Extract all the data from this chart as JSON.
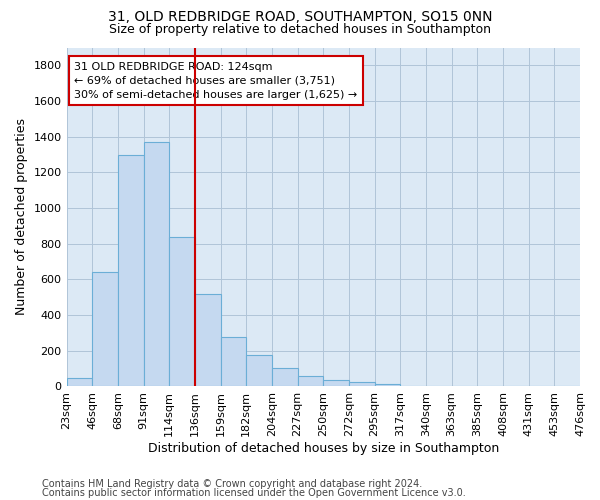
{
  "title_line1": "31, OLD REDBRIDGE ROAD, SOUTHAMPTON, SO15 0NN",
  "title_line2": "Size of property relative to detached houses in Southampton",
  "xlabel": "Distribution of detached houses by size in Southampton",
  "ylabel": "Number of detached properties",
  "footnote1": "Contains HM Land Registry data © Crown copyright and database right 2024.",
  "footnote2": "Contains public sector information licensed under the Open Government Licence v3.0.",
  "annotation_line1": "31 OLD REDBRIDGE ROAD: 124sqm",
  "annotation_line2": "← 69% of detached houses are smaller (3,751)",
  "annotation_line3": "30% of semi-detached houses are larger (1,625) →",
  "bar_values": [
    50,
    640,
    1300,
    1370,
    840,
    520,
    275,
    175,
    105,
    60,
    35,
    25,
    13,
    5,
    0,
    0,
    0,
    0,
    0,
    0
  ],
  "bin_labels": [
    "23sqm",
    "46sqm",
    "68sqm",
    "91sqm",
    "114sqm",
    "136sqm",
    "159sqm",
    "182sqm",
    "204sqm",
    "227sqm",
    "250sqm",
    "272sqm",
    "295sqm",
    "317sqm",
    "340sqm",
    "363sqm",
    "385sqm",
    "408sqm",
    "431sqm",
    "453sqm",
    "476sqm"
  ],
  "bar_color": "#c5d9f0",
  "bar_edge_color": "#6baed6",
  "marker_color": "#cc0000",
  "ylim": [
    0,
    1900
  ],
  "yticks": [
    0,
    200,
    400,
    600,
    800,
    1000,
    1200,
    1400,
    1600,
    1800
  ],
  "plot_bg_color": "#dce9f5",
  "background_color": "#ffffff",
  "grid_color": "#b0c4d8",
  "title_fontsize": 10,
  "subtitle_fontsize": 9,
  "axis_label_fontsize": 9,
  "tick_fontsize": 8,
  "annotation_fontsize": 8,
  "footnote_fontsize": 7
}
